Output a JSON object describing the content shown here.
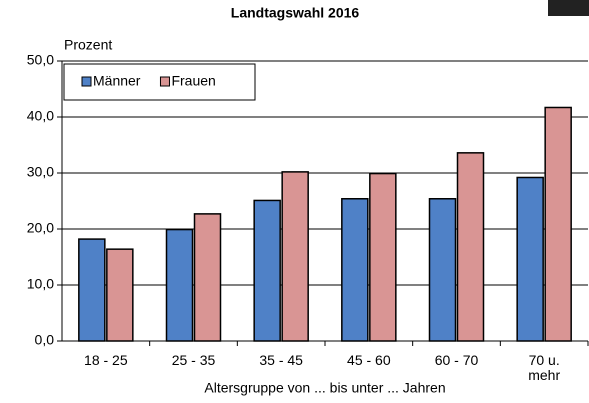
{
  "chart_data": {
    "type": "bar",
    "title": "Landtagswahl 2016",
    "y_label": "Prozent",
    "x_label": "Altersgruppe von ... bis unter ... Jahren",
    "categories": [
      "18 - 25",
      "25 - 35",
      "35 - 45",
      "45 - 60",
      "60 - 70",
      "70 u. mehr"
    ],
    "series": [
      {
        "name": "Männer",
        "color": "#4f81c7",
        "values": [
          18.2,
          19.9,
          25.1,
          25.4,
          25.4,
          29.2
        ]
      },
      {
        "name": "Frauen",
        "color": "#d99594",
        "values": [
          16.4,
          22.7,
          30.2,
          29.9,
          33.6,
          41.7
        ]
      }
    ],
    "ylim": [
      0,
      50
    ],
    "yticks": [
      {
        "value": 0,
        "label": "0,0"
      },
      {
        "value": 10,
        "label": "10,0"
      },
      {
        "value": 20,
        "label": "20,0"
      },
      {
        "value": 30,
        "label": "30,0"
      },
      {
        "value": 40,
        "label": "40,0"
      },
      {
        "value": 50,
        "label": "50,0"
      }
    ],
    "grid": true,
    "legend": "upper left"
  }
}
